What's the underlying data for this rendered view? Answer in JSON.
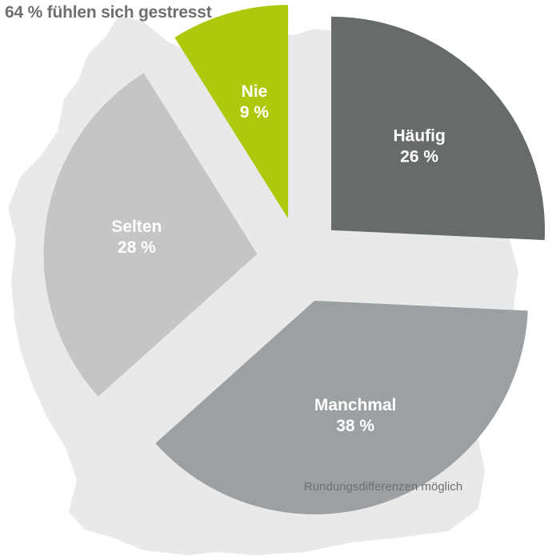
{
  "chart_data": {
    "type": "pie",
    "title": "64 % fühlen sich gestresst",
    "note": "Rundungsdifferenzen möglich",
    "slices": [
      {
        "label": "Häufig",
        "value": 26,
        "value_text": "26 %",
        "color": "#676b6c"
      },
      {
        "label": "Manchmal",
        "value": 38,
        "value_text": "38 %",
        "color": "#9ca0a3"
      },
      {
        "label": "Selten",
        "value": 28,
        "value_text": "28 %",
        "color": "#c3c5c7"
      },
      {
        "label": "Nie",
        "value": 9,
        "value_text": "9 %",
        "color": "#aec90b"
      }
    ],
    "background_shape": "germany-map",
    "background_color": "#e9e9ea"
  }
}
